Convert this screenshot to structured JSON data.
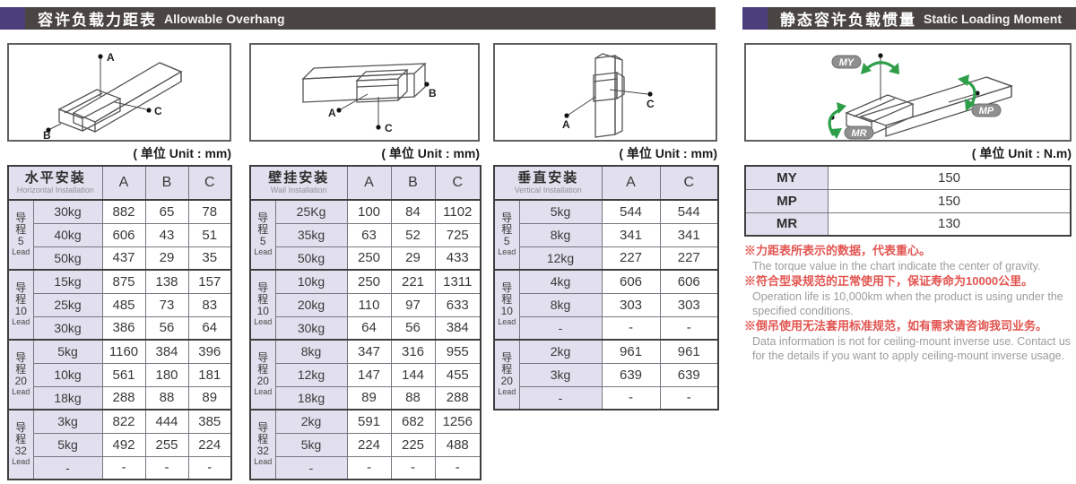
{
  "headers": {
    "left": {
      "cn": "容许负载力距表",
      "en": "Allowable Overhang"
    },
    "right": {
      "cn": "静态容许负载惯量",
      "en": "Static Loading Moment"
    }
  },
  "colors": {
    "accent_purple": "#4c3d7d",
    "bar_dark": "#4a4442",
    "cell_lavender": "#e2e0ee",
    "note_red": "#e25551",
    "note_gray": "#9c9c9c",
    "arrow_green": "#2e9e49"
  },
  "diagrams": {
    "horizontal": {
      "a": "A",
      "b": "B",
      "c": "C"
    },
    "wall": {
      "a": "A",
      "b": "B",
      "c": "C"
    },
    "vertical": {
      "a": "A",
      "c": "C"
    },
    "moment": {
      "my": "MY",
      "mp": "MP",
      "mr": "MR"
    }
  },
  "tables": [
    {
      "title_cn": "水平安装",
      "title_en": "Horizontal Installation",
      "unit": "( 单位 Unit : mm)",
      "columns": [
        "A",
        "B",
        "C"
      ],
      "groups": [
        {
          "lead": "导程",
          "num": "5",
          "sub": "Lead",
          "rows": [
            [
              "30kg",
              "882",
              "65",
              "78"
            ],
            [
              "40kg",
              "606",
              "43",
              "51"
            ],
            [
              "50kg",
              "437",
              "29",
              "35"
            ]
          ]
        },
        {
          "lead": "导程",
          "num": "10",
          "sub": "Lead",
          "rows": [
            [
              "15kg",
              "875",
              "138",
              "157"
            ],
            [
              "25kg",
              "485",
              "73",
              "83"
            ],
            [
              "30kg",
              "386",
              "56",
              "64"
            ]
          ]
        },
        {
          "lead": "导程",
          "num": "20",
          "sub": "Lead",
          "rows": [
            [
              "5kg",
              "1160",
              "384",
              "396"
            ],
            [
              "10kg",
              "561",
              "180",
              "181"
            ],
            [
              "18kg",
              "288",
              "88",
              "89"
            ]
          ]
        },
        {
          "lead": "导程",
          "num": "32",
          "sub": "Lead",
          "rows": [
            [
              "3kg",
              "822",
              "444",
              "385"
            ],
            [
              "5kg",
              "492",
              "255",
              "224"
            ],
            [
              "-",
              "-",
              "-",
              "-"
            ]
          ]
        }
      ]
    },
    {
      "title_cn": "壁挂安装",
      "title_en": "Wall Installation",
      "unit": "( 单位 Unit : mm)",
      "columns": [
        "A",
        "B",
        "C"
      ],
      "groups": [
        {
          "lead": "导程",
          "num": "5",
          "sub": "Lead",
          "rows": [
            [
              "25Kg",
              "100",
              "84",
              "1102"
            ],
            [
              "35kg",
              "63",
              "52",
              "725"
            ],
            [
              "50kg",
              "250",
              "29",
              "433"
            ]
          ]
        },
        {
          "lead": "导程",
          "num": "10",
          "sub": "Lead",
          "rows": [
            [
              "10kg",
              "250",
              "221",
              "1311"
            ],
            [
              "20kg",
              "110",
              "97",
              "633"
            ],
            [
              "30kg",
              "64",
              "56",
              "384"
            ]
          ]
        },
        {
          "lead": "导程",
          "num": "20",
          "sub": "Lead",
          "rows": [
            [
              "8kg",
              "347",
              "316",
              "955"
            ],
            [
              "12kg",
              "147",
              "144",
              "455"
            ],
            [
              "18kg",
              "89",
              "88",
              "288"
            ]
          ]
        },
        {
          "lead": "导程",
          "num": "32",
          "sub": "Lead",
          "rows": [
            [
              "2kg",
              "591",
              "682",
              "1256"
            ],
            [
              "5kg",
              "224",
              "225",
              "488"
            ],
            [
              "-",
              "-",
              "-",
              "-"
            ]
          ]
        }
      ]
    },
    {
      "title_cn": "垂直安装",
      "title_en": "Vertical Installation",
      "unit": "( 单位 Unit : mm)",
      "columns": [
        "A",
        "C"
      ],
      "groups": [
        {
          "lead": "导程",
          "num": "5",
          "sub": "Lead",
          "rows": [
            [
              "5kg",
              "544",
              "544"
            ],
            [
              "8kg",
              "341",
              "341"
            ],
            [
              "12kg",
              "227",
              "227"
            ]
          ]
        },
        {
          "lead": "导程",
          "num": "10",
          "sub": "Lead",
          "rows": [
            [
              "4kg",
              "606",
              "606"
            ],
            [
              "8kg",
              "303",
              "303"
            ],
            [
              "-",
              "-",
              "-"
            ]
          ]
        },
        {
          "lead": "导程",
          "num": "20",
          "sub": "Lead",
          "rows": [
            [
              "2kg",
              "961",
              "961"
            ],
            [
              "3kg",
              "639",
              "639"
            ],
            [
              "-",
              "-",
              "-"
            ]
          ]
        }
      ]
    }
  ],
  "moment_table": {
    "unit": "( 单位 Unit : N.m)",
    "rows": [
      {
        "label": "MY",
        "value": "150"
      },
      {
        "label": "MP",
        "value": "150"
      },
      {
        "label": "MR",
        "value": "130"
      }
    ]
  },
  "notes": [
    {
      "cn": "※力距表所表示的数据，代表重心。",
      "en": "The torque value in the chart indicate the center of gravity."
    },
    {
      "cn": "※符合型录规范的正常使用下，保证寿命为10000公里。",
      "en": "Operation life is 10,000km when the product is using under the specified conditions."
    },
    {
      "cn": "※倒吊使用无法套用标准规范，如有需求请咨询我司业务。",
      "en": "Data information is not for ceiling-mount inverse use. Contact us for the details if you want to apply ceiling-mount inverse usage."
    }
  ]
}
